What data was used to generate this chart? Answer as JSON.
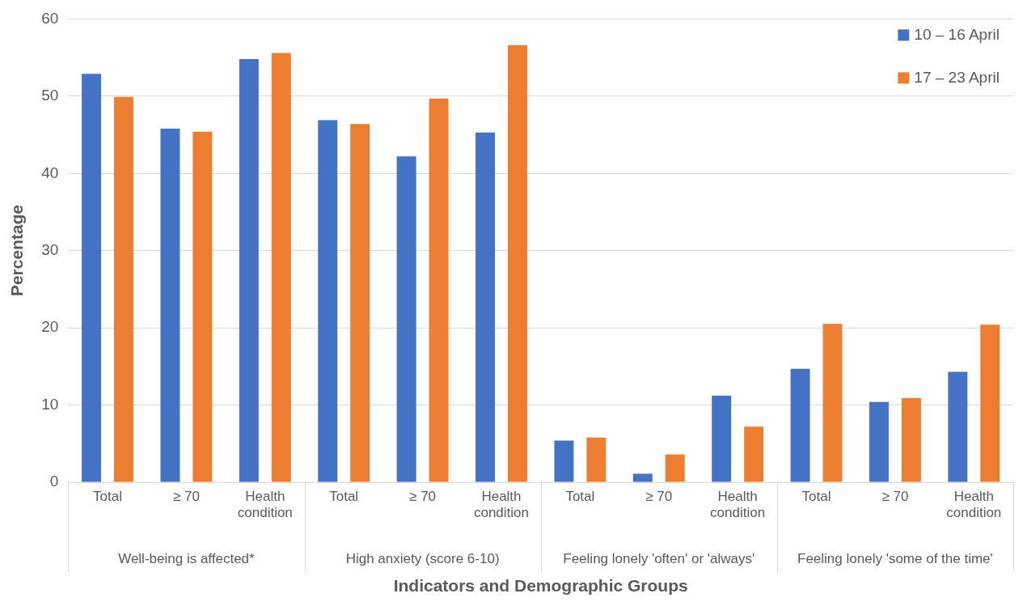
{
  "chart_data": {
    "type": "bar",
    "xlabel": "Indicators and Demographic Groups",
    "ylabel": "Percentage",
    "categories": [
      "Total",
      "≥ 70",
      "Health condition",
      "Total",
      "≥ 70",
      "Health condition",
      "Total",
      "≥ 70",
      "Health condition",
      "Total",
      "≥ 70",
      "Health condition"
    ],
    "annotations": [
      "Well-being is affected*",
      "High anxiety (score 6-10)",
      "Feeling lonely 'often' or 'always'",
      "Feeling lonely 'some of the time'"
    ],
    "series": [
      {
        "name": "10 – 16 April",
        "color": "#4472c4",
        "values": [
          52.9,
          45.8,
          54.8,
          46.9,
          42.2,
          45.3,
          5.4,
          1.1,
          11.2,
          14.7,
          10.4,
          14.3
        ]
      },
      {
        "name": "17 – 23 April",
        "color": "#ed7d31",
        "values": [
          49.9,
          45.4,
          55.6,
          46.4,
          49.7,
          56.6,
          5.8,
          3.6,
          7.2,
          20.5,
          10.9,
          20.4
        ]
      }
    ],
    "ylim": [
      0,
      60
    ],
    "yticks": [
      0,
      10,
      20,
      30,
      40,
      50,
      60
    ],
    "grid": "y",
    "legend": "top right"
  }
}
